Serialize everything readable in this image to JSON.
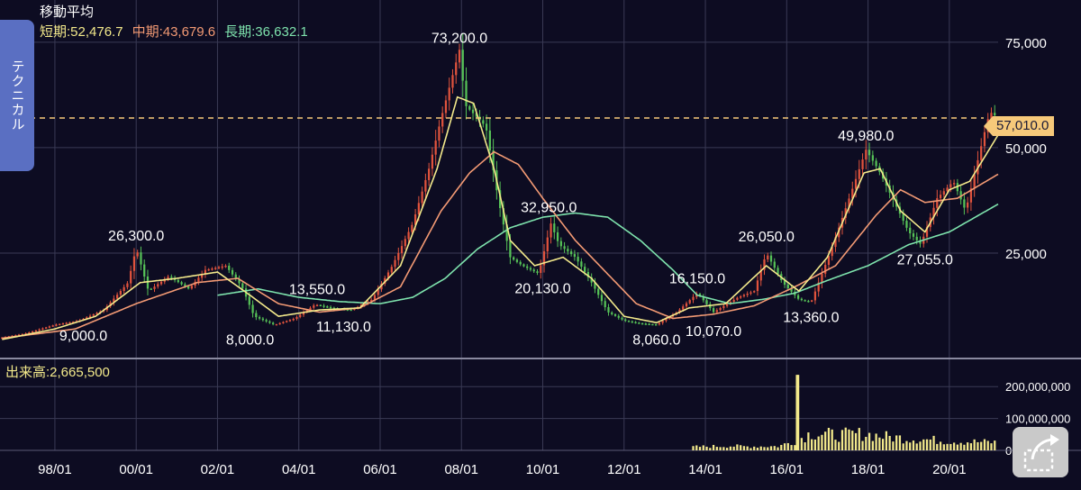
{
  "header": {
    "title": "移動平均",
    "ma_short": "短期:52,476.7",
    "ma_mid": "中期:43,679.6",
    "ma_long": "長期:36,632.1"
  },
  "side_tab": {
    "label": "テクニカル"
  },
  "volume_label": "出来高:2,665,500",
  "current_price_label": "57,010.0",
  "colors": {
    "background": "#0d0c22",
    "grid": "#3a3a55",
    "up": "#e0533d",
    "down": "#56c257",
    "ma_short": "#f3e98b",
    "ma_mid": "#f39a74",
    "ma_long": "#7ee3ad",
    "price_line": "#f6c97a",
    "volume": "#f3e98b"
  },
  "icons": {
    "share": "share-arrow-icon"
  },
  "chart_data": {
    "type": "line",
    "price": {
      "ylim": [
        0,
        85000
      ],
      "yticks": [
        "75,000",
        "50,000",
        "25,000"
      ],
      "ytick_values": [
        75000,
        50000,
        25000
      ],
      "xticks": [
        "98/01",
        "00/01",
        "02/01",
        "04/01",
        "06/01",
        "08/01",
        "10/01",
        "12/01",
        "14/01",
        "16/01",
        "18/01",
        "20/01"
      ],
      "xtick_years": [
        1998,
        2000,
        2002,
        2004,
        2006,
        2008,
        2010,
        2012,
        2014,
        2016,
        2018,
        2020
      ],
      "x_range": [
        1996.65,
        2021.2
      ],
      "current_price": 57010,
      "annotations": [
        {
          "label": "73,200.0",
          "x": 2007.95,
          "y": 73200,
          "pos": "above"
        },
        {
          "label": "26,300.0",
          "x": 2000.0,
          "y": 26300,
          "pos": "above"
        },
        {
          "label": "9,000.0",
          "x": 1998.7,
          "y": 9000,
          "pos": "below"
        },
        {
          "label": "8,000.0",
          "x": 2002.8,
          "y": 8000,
          "pos": "below"
        },
        {
          "label": "13,550.0",
          "x": 2004.45,
          "y": 13550,
          "pos": "above"
        },
        {
          "label": "11,130.0",
          "x": 2005.1,
          "y": 11130,
          "pos": "below"
        },
        {
          "label": "32,950.0",
          "x": 2010.15,
          "y": 32950,
          "pos": "above"
        },
        {
          "label": "20,130.0",
          "x": 2010.0,
          "y": 20130,
          "pos": "below"
        },
        {
          "label": "8,060.0",
          "x": 2012.8,
          "y": 8060,
          "pos": "below"
        },
        {
          "label": "16,150.0",
          "x": 2013.8,
          "y": 16150,
          "pos": "above"
        },
        {
          "label": "10,070.0",
          "x": 2014.2,
          "y": 10070,
          "pos": "below"
        },
        {
          "label": "26,050.0",
          "x": 2015.5,
          "y": 26050,
          "pos": "above"
        },
        {
          "label": "13,360.0",
          "x": 2016.6,
          "y": 13360,
          "pos": "below"
        },
        {
          "label": "49,980.0",
          "x": 2017.95,
          "y": 49980,
          "pos": "above"
        },
        {
          "label": "27,055.0",
          "x": 2019.4,
          "y": 27055,
          "pos": "below"
        }
      ],
      "anchors": [
        [
          1996.7,
          5000
        ],
        [
          1997.3,
          6000
        ],
        [
          1998.0,
          8000
        ],
        [
          1998.6,
          9000
        ],
        [
          1999.2,
          11500
        ],
        [
          1999.8,
          18000
        ],
        [
          2000.0,
          26300
        ],
        [
          2000.3,
          16000
        ],
        [
          2000.8,
          19500
        ],
        [
          2001.3,
          16500
        ],
        [
          2001.7,
          21000
        ],
        [
          2002.2,
          22000
        ],
        [
          2002.6,
          17000
        ],
        [
          2002.9,
          10000
        ],
        [
          2003.4,
          8000
        ],
        [
          2003.9,
          9500
        ],
        [
          2004.4,
          12800
        ],
        [
          2004.8,
          12000
        ],
        [
          2005.3,
          11500
        ],
        [
          2005.8,
          14000
        ],
        [
          2006.3,
          22000
        ],
        [
          2006.8,
          32000
        ],
        [
          2007.2,
          45000
        ],
        [
          2007.5,
          57000
        ],
        [
          2007.95,
          73200
        ],
        [
          2008.1,
          60000
        ],
        [
          2008.4,
          57000
        ],
        [
          2008.6,
          55000
        ],
        [
          2008.9,
          38000
        ],
        [
          2009.2,
          24000
        ],
        [
          2009.5,
          22000
        ],
        [
          2009.9,
          20130
        ],
        [
          2010.2,
          32000
        ],
        [
          2010.4,
          27000
        ],
        [
          2010.8,
          24000
        ],
        [
          2011.2,
          18000
        ],
        [
          2011.6,
          11000
        ],
        [
          2012.0,
          9000
        ],
        [
          2012.4,
          8300
        ],
        [
          2012.8,
          8060
        ],
        [
          2013.3,
          11000
        ],
        [
          2013.8,
          15500
        ],
        [
          2014.2,
          11000
        ],
        [
          2014.8,
          14500
        ],
        [
          2015.2,
          16000
        ],
        [
          2015.5,
          25000
        ],
        [
          2015.9,
          18000
        ],
        [
          2016.3,
          14000
        ],
        [
          2016.6,
          13360
        ],
        [
          2017.1,
          26000
        ],
        [
          2017.5,
          37000
        ],
        [
          2017.95,
          49500
        ],
        [
          2018.3,
          44000
        ],
        [
          2018.7,
          36000
        ],
        [
          2019.0,
          30000
        ],
        [
          2019.3,
          27055
        ],
        [
          2019.7,
          38000
        ],
        [
          2020.1,
          42000
        ],
        [
          2020.4,
          35000
        ],
        [
          2020.7,
          47000
        ],
        [
          2020.9,
          55000
        ],
        [
          2021.0,
          58500
        ],
        [
          2021.2,
          57010
        ]
      ],
      "ma_short": [
        [
          1996.7,
          4500
        ],
        [
          1998.0,
          7000
        ],
        [
          1999.0,
          10000
        ],
        [
          2000.1,
          18000
        ],
        [
          2001.0,
          19000
        ],
        [
          2002.0,
          20500
        ],
        [
          2002.8,
          15000
        ],
        [
          2003.5,
          10000
        ],
        [
          2004.5,
          11500
        ],
        [
          2005.5,
          12000
        ],
        [
          2006.5,
          22000
        ],
        [
          2007.4,
          45000
        ],
        [
          2007.9,
          62000
        ],
        [
          2008.3,
          60500
        ],
        [
          2008.8,
          45000
        ],
        [
          2009.2,
          28000
        ],
        [
          2009.8,
          22000
        ],
        [
          2010.5,
          24000
        ],
        [
          2011.2,
          19000
        ],
        [
          2012.0,
          10000
        ],
        [
          2012.8,
          8500
        ],
        [
          2013.6,
          12000
        ],
        [
          2014.5,
          13000
        ],
        [
          2015.5,
          22000
        ],
        [
          2016.3,
          16000
        ],
        [
          2017.0,
          24000
        ],
        [
          2017.9,
          44000
        ],
        [
          2018.3,
          45000
        ],
        [
          2018.8,
          35000
        ],
        [
          2019.4,
          30000
        ],
        [
          2020.0,
          40000
        ],
        [
          2020.5,
          42000
        ],
        [
          2021.2,
          53000
        ]
      ],
      "ma_mid": [
        [
          1996.7,
          4800
        ],
        [
          1998.5,
          7000
        ],
        [
          2000.0,
          13000
        ],
        [
          2001.5,
          18000
        ],
        [
          2002.5,
          19000
        ],
        [
          2003.5,
          13000
        ],
        [
          2004.5,
          11000
        ],
        [
          2005.5,
          12000
        ],
        [
          2006.5,
          17000
        ],
        [
          2007.5,
          35000
        ],
        [
          2008.2,
          44000
        ],
        [
          2008.8,
          49000
        ],
        [
          2009.4,
          46000
        ],
        [
          2010.0,
          38000
        ],
        [
          2010.8,
          28000
        ],
        [
          2011.5,
          21000
        ],
        [
          2012.3,
          13000
        ],
        [
          2013.2,
          9500
        ],
        [
          2014.2,
          10500
        ],
        [
          2015.2,
          12500
        ],
        [
          2016.2,
          17000
        ],
        [
          2017.2,
          22000
        ],
        [
          2018.2,
          34000
        ],
        [
          2018.8,
          40000
        ],
        [
          2019.4,
          37000
        ],
        [
          2020.2,
          38000
        ],
        [
          2021.2,
          43700
        ]
      ],
      "ma_long": [
        [
          2002.0,
          15000
        ],
        [
          2003.0,
          16500
        ],
        [
          2004.0,
          14500
        ],
        [
          2005.0,
          13500
        ],
        [
          2006.0,
          13000
        ],
        [
          2006.8,
          14500
        ],
        [
          2007.6,
          19000
        ],
        [
          2008.4,
          26000
        ],
        [
          2009.2,
          31000
        ],
        [
          2010.0,
          33500
        ],
        [
          2010.8,
          34500
        ],
        [
          2011.6,
          33500
        ],
        [
          2012.4,
          28000
        ],
        [
          2013.2,
          21000
        ],
        [
          2013.8,
          15000
        ],
        [
          2014.6,
          13000
        ],
        [
          2015.4,
          14000
        ],
        [
          2016.2,
          15500
        ],
        [
          2017.0,
          18500
        ],
        [
          2018.0,
          22000
        ],
        [
          2019.0,
          27000
        ],
        [
          2020.0,
          30000
        ],
        [
          2021.2,
          36600
        ]
      ]
    },
    "volume": {
      "ylim": [
        0,
        260000000
      ],
      "yticks": [
        "200,000,000",
        "100,000,000",
        "0"
      ],
      "ytick_values": [
        200000000,
        100000000,
        0
      ],
      "spike": {
        "x": 2016.25,
        "value": 237000000
      },
      "profile": [
        [
          2013.7,
          11000000
        ],
        [
          2014.6,
          14000000
        ],
        [
          2015.0,
          12000000
        ],
        [
          2015.8,
          13000000
        ],
        [
          2016.2,
          30000000
        ],
        [
          2016.6,
          55000000
        ],
        [
          2017.2,
          48000000
        ],
        [
          2017.9,
          52000000
        ],
        [
          2018.5,
          42000000
        ],
        [
          2019.3,
          35000000
        ],
        [
          2020.2,
          28000000
        ],
        [
          2021.2,
          25000000
        ]
      ]
    }
  }
}
